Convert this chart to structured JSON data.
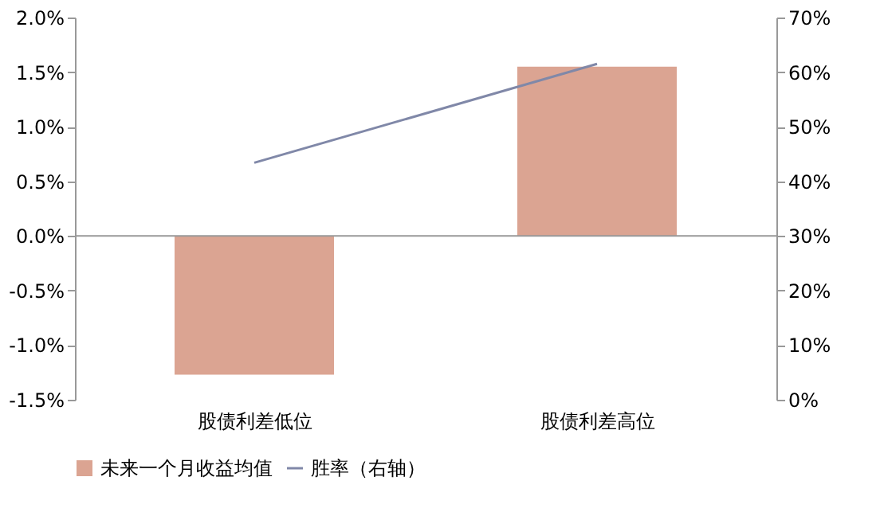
{
  "chart_data": {
    "type": "bar",
    "categories": [
      "股债利差低位",
      "股债利差高位"
    ],
    "series": [
      {
        "name": "未来一个月收益均值",
        "color": "#dba492",
        "values": [
          -1.27,
          1.55
        ]
      },
      {
        "name": "胜率（右轴）",
        "color": "#8088a8",
        "type": "line",
        "axis": "y2",
        "values": [
          43.4,
          61.5
        ]
      }
    ],
    "ylim": [
      -1.5,
      2.0
    ],
    "yticks": [
      {
        "value": -1.5,
        "label": "-1.5%"
      },
      {
        "value": -1.0,
        "label": "-1.0%"
      },
      {
        "value": -0.5,
        "label": "-0.5%"
      },
      {
        "value": 0,
        "label": "0.0%"
      },
      {
        "value": 0.5,
        "label": "0.5%"
      },
      {
        "value": 1.0,
        "label": "1.0%"
      },
      {
        "value": 1.5,
        "label": "1.5%"
      },
      {
        "value": 2.0,
        "label": "2.0%"
      }
    ],
    "y2lim": [
      0,
      70
    ],
    "y2ticks": [
      {
        "value": 0,
        "label": "0%"
      },
      {
        "value": 10,
        "label": "10%"
      },
      {
        "value": 20,
        "label": "20%"
      },
      {
        "value": 30,
        "label": "30%"
      },
      {
        "value": 40,
        "label": "40%"
      },
      {
        "value": 50,
        "label": "50%"
      },
      {
        "value": 60,
        "label": "60%"
      },
      {
        "value": 70,
        "label": "70%"
      }
    ],
    "ref_lines": [
      {
        "axis": "y",
        "value": 0,
        "color": "#999999"
      }
    ],
    "grid": false,
    "legend": "bottom"
  }
}
